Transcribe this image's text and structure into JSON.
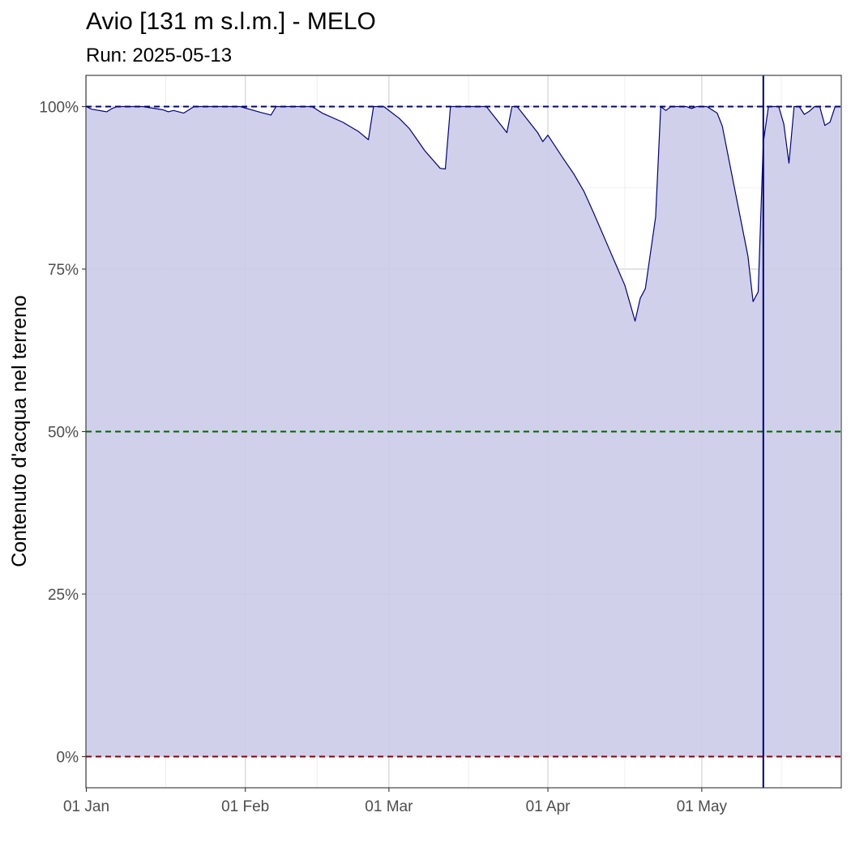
{
  "chart_data": {
    "type": "area",
    "title": "Avio [131 m s.l.m.] - MELO",
    "subtitle": "Run: 2025-05-13",
    "xlabel": "",
    "ylabel": "Contenuto d'acqua nel terreno",
    "x_tick_labels": [
      {
        "date": "2025-01-01",
        "label": "01 Jan"
      },
      {
        "date": "2025-02-01",
        "label": "01 Feb"
      },
      {
        "date": "2025-03-01",
        "label": "01 Mar"
      },
      {
        "date": "2025-04-01",
        "label": "01 Apr"
      },
      {
        "date": "2025-05-01",
        "label": "01 May"
      }
    ],
    "y_tick_labels": [
      {
        "value": 0,
        "label": "0%"
      },
      {
        "value": 25,
        "label": "25%"
      },
      {
        "value": 50,
        "label": "50%"
      },
      {
        "value": 75,
        "label": "75%"
      },
      {
        "value": 100,
        "label": "100%"
      }
    ],
    "xlim": [
      "2025-01-01",
      "2025-05-28"
    ],
    "ylim": [
      -4.8,
      104.8
    ],
    "grid": true,
    "reference_lines": [
      {
        "value": 100,
        "color": "#000080",
        "style": "dashed"
      },
      {
        "value": 50,
        "color": "#006400",
        "style": "dashed"
      },
      {
        "value": 0,
        "color": "#8b0000",
        "style": "dashed"
      }
    ],
    "vertical_line": {
      "date": "2025-05-13",
      "color": "#000080"
    },
    "series": [
      {
        "color": "#000080",
        "fill": "#cccce8",
        "points": [
          [
            "2025-01-01",
            100
          ],
          [
            "2025-01-02",
            99.6
          ],
          [
            "2025-01-05",
            99.2
          ],
          [
            "2025-01-06",
            99.7
          ],
          [
            "2025-01-07",
            100
          ],
          [
            "2025-01-12",
            100
          ],
          [
            "2025-01-16",
            99.5
          ],
          [
            "2025-01-17",
            99.2
          ],
          [
            "2025-01-18",
            99.4
          ],
          [
            "2025-01-20",
            99
          ],
          [
            "2025-01-22",
            100
          ],
          [
            "2025-01-31",
            100
          ],
          [
            "2025-02-04",
            99.1
          ],
          [
            "2025-02-06",
            98.7
          ],
          [
            "2025-02-07",
            100
          ],
          [
            "2025-02-14",
            100
          ],
          [
            "2025-02-16",
            99
          ],
          [
            "2025-02-20",
            97.6
          ],
          [
            "2025-02-23",
            96.2
          ],
          [
            "2025-02-25",
            94.9
          ],
          [
            "2025-02-26",
            100
          ],
          [
            "2025-02-28",
            100
          ],
          [
            "2025-03-03",
            98.2
          ],
          [
            "2025-03-05",
            96.6
          ],
          [
            "2025-03-08",
            93.2
          ],
          [
            "2025-03-11",
            90.5
          ],
          [
            "2025-03-12",
            90.4
          ],
          [
            "2025-03-13",
            100
          ],
          [
            "2025-03-20",
            100
          ],
          [
            "2025-03-22",
            98
          ],
          [
            "2025-03-24",
            96
          ],
          [
            "2025-03-25",
            100
          ],
          [
            "2025-03-26",
            100
          ],
          [
            "2025-03-27",
            99
          ],
          [
            "2025-03-30",
            96
          ],
          [
            "2025-03-31",
            94.6
          ],
          [
            "2025-04-01",
            95.6
          ],
          [
            "2025-04-04",
            92
          ],
          [
            "2025-04-06",
            89.7
          ],
          [
            "2025-04-08",
            87
          ],
          [
            "2025-04-10",
            83.5
          ],
          [
            "2025-04-13",
            78
          ],
          [
            "2025-04-16",
            72.5
          ],
          [
            "2025-04-18",
            67
          ],
          [
            "2025-04-19",
            70.5
          ],
          [
            "2025-04-20",
            72
          ],
          [
            "2025-04-22",
            83
          ],
          [
            "2025-04-23",
            100
          ],
          [
            "2025-04-24",
            99.4
          ],
          [
            "2025-04-25",
            100
          ],
          [
            "2025-04-28",
            100
          ],
          [
            "2025-04-29",
            99.7
          ],
          [
            "2025-04-30",
            100
          ],
          [
            "2025-05-02",
            100
          ],
          [
            "2025-05-04",
            99
          ],
          [
            "2025-05-05",
            97
          ],
          [
            "2025-05-07",
            89
          ],
          [
            "2025-05-08",
            85
          ],
          [
            "2025-05-10",
            77
          ],
          [
            "2025-05-11",
            70
          ],
          [
            "2025-05-12",
            71.5
          ],
          [
            "2025-05-13",
            94.5
          ],
          [
            "2025-05-14",
            100
          ],
          [
            "2025-05-16",
            100
          ],
          [
            "2025-05-17",
            97.3
          ],
          [
            "2025-05-18",
            91.3
          ],
          [
            "2025-05-19",
            100
          ],
          [
            "2025-05-20",
            100
          ],
          [
            "2025-05-21",
            98.8
          ],
          [
            "2025-05-22",
            99.3
          ],
          [
            "2025-05-23",
            100
          ],
          [
            "2025-05-24",
            100
          ],
          [
            "2025-05-25",
            97.1
          ],
          [
            "2025-05-26",
            97.6
          ],
          [
            "2025-05-27",
            100
          ],
          [
            "2025-05-28",
            100
          ]
        ]
      }
    ]
  }
}
